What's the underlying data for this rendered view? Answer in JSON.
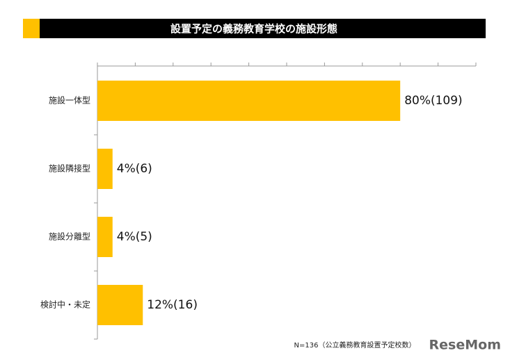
{
  "chart_data": {
    "type": "bar",
    "orientation": "horizontal",
    "title": "設置予定の義務教育学校の施設形態",
    "categories": [
      "施設一体型",
      "施設隣接型",
      "施設分離型",
      "検討中・未定"
    ],
    "values": [
      80,
      4,
      4,
      12
    ],
    "value_labels": [
      "80%(109)",
      "4%(6)",
      "4%(5)",
      "12%(16)"
    ],
    "color": "#ffc000",
    "xlim": [
      0,
      100
    ],
    "xticks": [
      0,
      10,
      20,
      30,
      40,
      50,
      60,
      70,
      80,
      90,
      100
    ],
    "note": "N=136（公立義務教育設置予定校数）",
    "brand": "ReseMom"
  }
}
